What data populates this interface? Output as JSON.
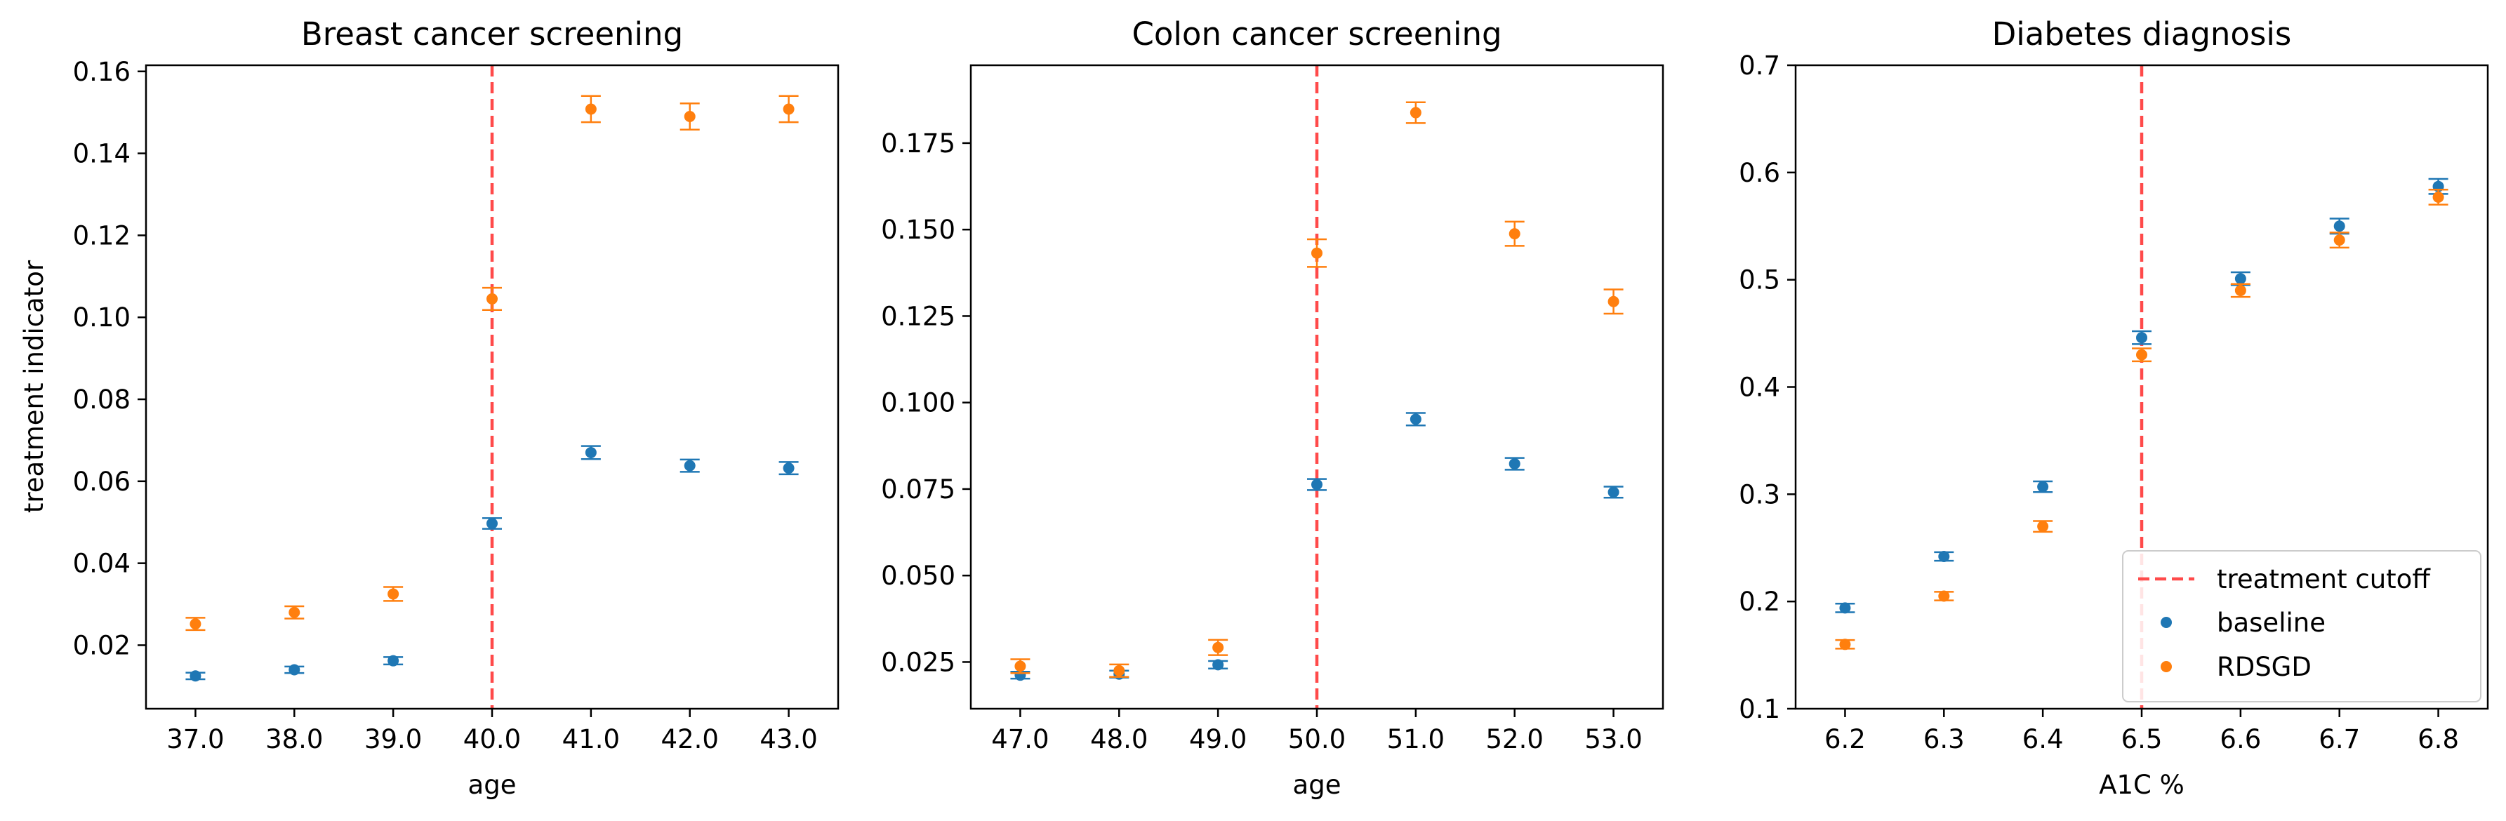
{
  "colors": {
    "baseline": "#1f77b4",
    "rdsgd": "#ff7f0e",
    "cutoff": "#ff4a4a"
  },
  "legend": {
    "cutoff_label": "treatment cutoff",
    "baseline_label": "baseline",
    "rdsgd_label": "RDSGD"
  },
  "chart_data": [
    {
      "type": "scatter",
      "title": "Breast cancer screening",
      "xlabel": "age",
      "ylabel": "treatment indicator",
      "xlim": [
        36.5,
        43.5
      ],
      "ylim": [
        0.0045,
        0.1615
      ],
      "xticks": [
        37,
        38,
        39,
        40,
        41,
        42,
        43
      ],
      "xtick_labels": [
        "37.0",
        "38.0",
        "39.0",
        "40.0",
        "41.0",
        "42.0",
        "43.0"
      ],
      "yticks": [
        0.02,
        0.04,
        0.06,
        0.08,
        0.1,
        0.12,
        0.14,
        0.16
      ],
      "ytick_labels": [
        "0.02",
        "0.04",
        "0.06",
        "0.08",
        "0.10",
        "0.12",
        "0.14",
        "0.16"
      ],
      "cutoff": 40,
      "series": [
        {
          "name": "baseline",
          "x": [
            37,
            38,
            39,
            40,
            41,
            42,
            43
          ],
          "y": [
            0.0125,
            0.014,
            0.0162,
            0.0497,
            0.067,
            0.0638,
            0.0632
          ],
          "err": [
            0.0008,
            0.0008,
            0.0009,
            0.0013,
            0.0016,
            0.0015,
            0.0015
          ]
        },
        {
          "name": "RDSGD",
          "x": [
            37,
            38,
            39,
            40,
            41,
            42,
            43
          ],
          "y": [
            0.0252,
            0.028,
            0.0325,
            0.1045,
            0.1508,
            0.149,
            0.1508
          ],
          "err": [
            0.0015,
            0.0015,
            0.0017,
            0.0027,
            0.0032,
            0.0032,
            0.0032
          ]
        }
      ]
    },
    {
      "type": "scatter",
      "title": "Colon cancer screening",
      "xlabel": "age",
      "ylabel": "",
      "xlim": [
        46.5,
        53.5
      ],
      "ylim": [
        0.0115,
        0.1975
      ],
      "xticks": [
        47,
        48,
        49,
        50,
        51,
        52,
        53
      ],
      "xtick_labels": [
        "47.0",
        "48.0",
        "49.0",
        "50.0",
        "51.0",
        "52.0",
        "53.0"
      ],
      "yticks": [
        0.025,
        0.05,
        0.075,
        0.1,
        0.125,
        0.15,
        0.175
      ],
      "ytick_labels": [
        "0.025",
        "0.050",
        "0.075",
        "0.100",
        "0.125",
        "0.150",
        "0.175"
      ],
      "cutoff": 50,
      "series": [
        {
          "name": "baseline",
          "x": [
            47,
            48,
            49,
            50,
            51,
            52,
            53
          ],
          "y": [
            0.0212,
            0.0215,
            0.0242,
            0.0763,
            0.0952,
            0.0823,
            0.0741
          ],
          "err": [
            0.001,
            0.001,
            0.0011,
            0.0016,
            0.0018,
            0.0017,
            0.0016
          ]
        },
        {
          "name": "RDSGD",
          "x": [
            47,
            48,
            49,
            50,
            51,
            52,
            53
          ],
          "y": [
            0.0238,
            0.0225,
            0.0292,
            0.1432,
            0.1838,
            0.1488,
            0.1292
          ],
          "err": [
            0.002,
            0.0018,
            0.0022,
            0.004,
            0.003,
            0.0035,
            0.0035
          ]
        }
      ]
    },
    {
      "type": "scatter",
      "title": "Diabetes diagnosis",
      "xlabel": "A1C %",
      "ylabel": "",
      "xlim": [
        6.15,
        6.85
      ],
      "ylim": [
        0.1,
        0.7
      ],
      "xticks": [
        6.2,
        6.3,
        6.4,
        6.5,
        6.6,
        6.7,
        6.8
      ],
      "xtick_labels": [
        "6.2",
        "6.3",
        "6.4",
        "6.5",
        "6.6",
        "6.7",
        "6.8"
      ],
      "yticks": [
        0.1,
        0.2,
        0.3,
        0.4,
        0.5,
        0.6,
        0.7
      ],
      "ytick_labels": [
        "0.1",
        "0.2",
        "0.3",
        "0.4",
        "0.5",
        "0.6",
        "0.7"
      ],
      "cutoff": 6.5,
      "legend_position": "lower right",
      "series": [
        {
          "name": "baseline",
          "x": [
            6.2,
            6.3,
            6.4,
            6.5,
            6.6,
            6.7,
            6.8
          ],
          "y": [
            0.194,
            0.242,
            0.307,
            0.446,
            0.501,
            0.55,
            0.587
          ],
          "err": [
            0.004,
            0.004,
            0.005,
            0.006,
            0.006,
            0.007,
            0.007
          ]
        },
        {
          "name": "RDSGD",
          "x": [
            6.2,
            6.3,
            6.4,
            6.5,
            6.6,
            6.7,
            6.8
          ],
          "y": [
            0.16,
            0.205,
            0.27,
            0.43,
            0.49,
            0.537,
            0.577
          ],
          "err": [
            0.004,
            0.004,
            0.005,
            0.006,
            0.006,
            0.007,
            0.007
          ]
        }
      ]
    }
  ]
}
